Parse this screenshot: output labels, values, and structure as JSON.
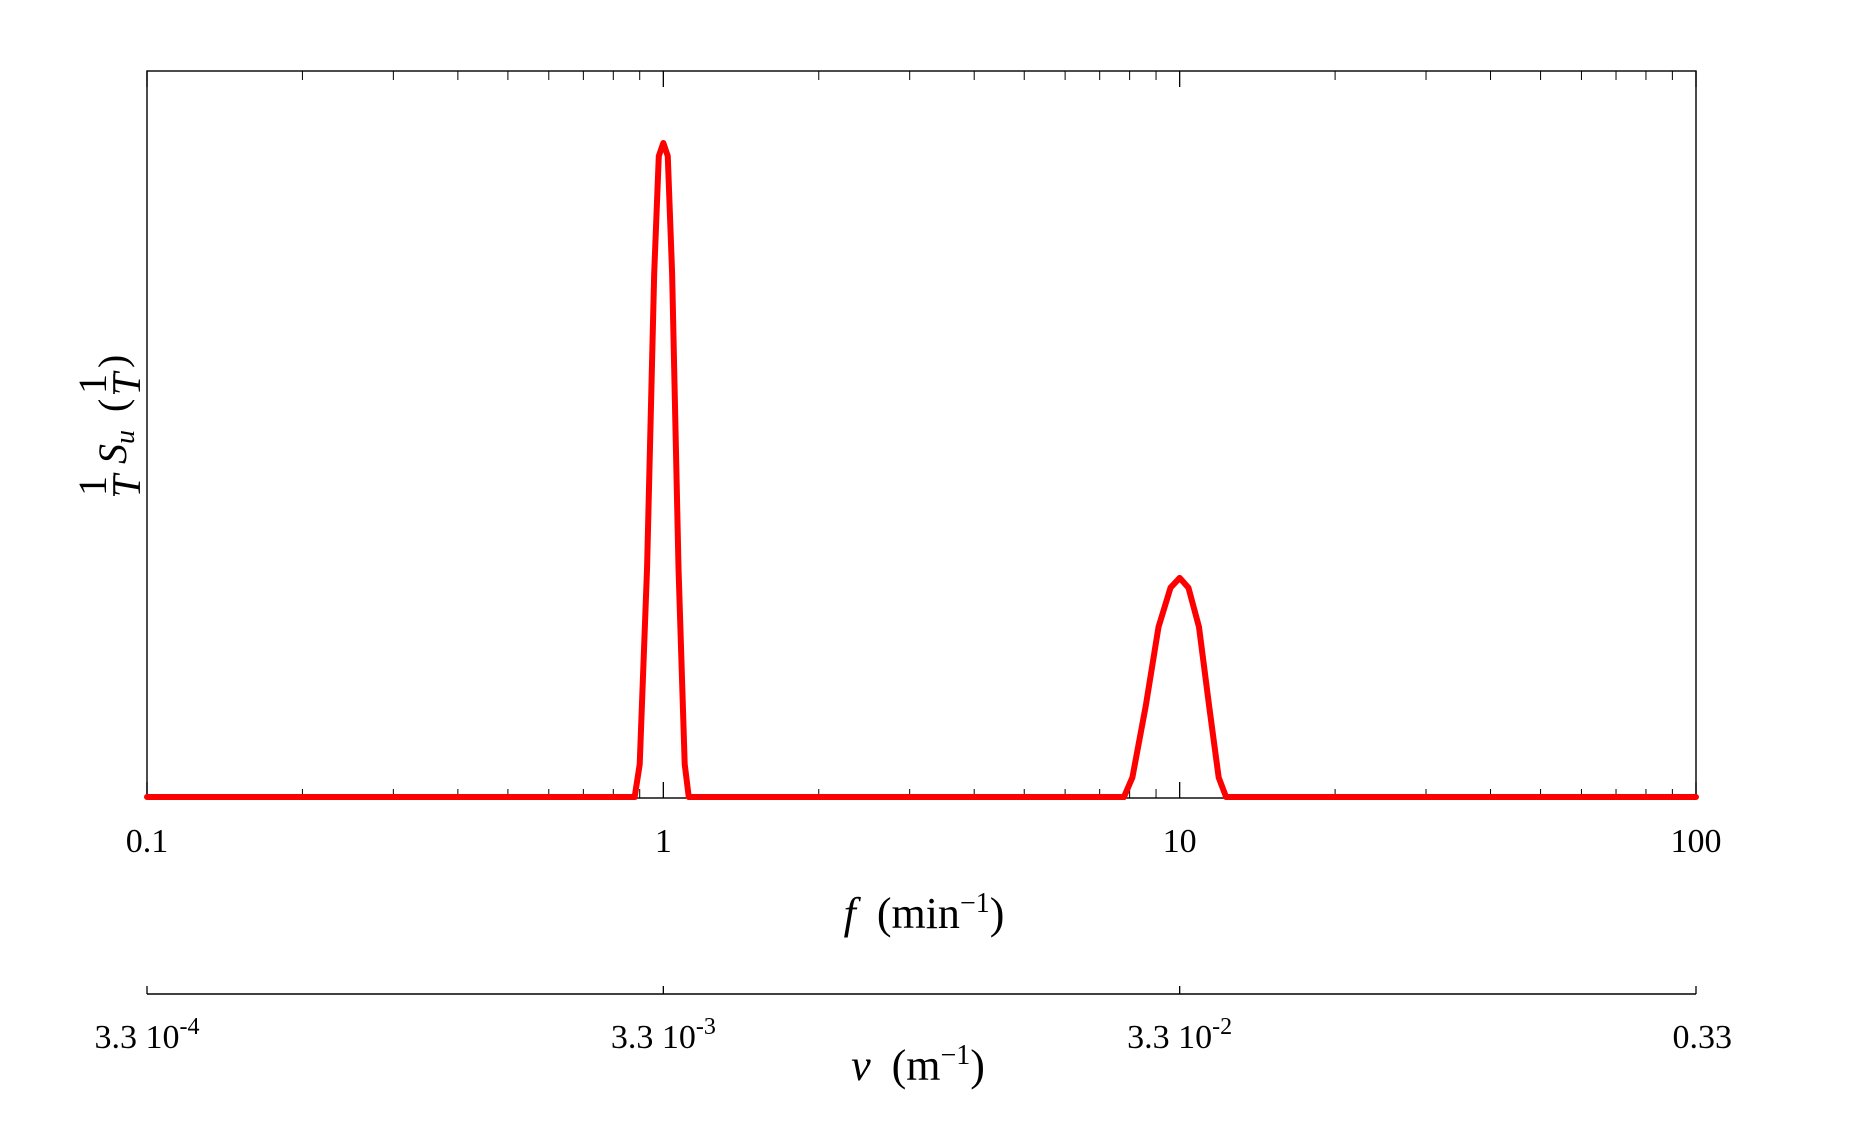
{
  "chart_data": {
    "type": "line",
    "xscale": "log",
    "xlim": [
      0.1,
      100
    ],
    "xticks": [
      {
        "value": 0.1,
        "label": "0.1"
      },
      {
        "value": 1,
        "label": "1"
      },
      {
        "value": 10,
        "label": "10"
      },
      {
        "value": 100,
        "label": "100"
      }
    ],
    "xlabel": {
      "var": "f",
      "unit_base": "min",
      "unit_exp": "−1"
    },
    "secondary_xaxis": {
      "label": {
        "var": "ν",
        "unit_base": "m",
        "unit_exp": "−1"
      },
      "ticks": [
        {
          "value": 0.1,
          "mantissa": "3.3 10",
          "exp": "-4"
        },
        {
          "value": 1,
          "mantissa": "3.3 10",
          "exp": "-3"
        },
        {
          "value": 10,
          "mantissa": "3.3 10",
          "exp": "-2"
        },
        {
          "value": 100,
          "mantissa": "0.33",
          "exp": ""
        }
      ]
    },
    "ylabel": {
      "frac_num": "1",
      "frac_den": "T",
      "symbol": "S",
      "subscript": "u"
    },
    "yticks": [],
    "grid": false,
    "line_color": "#ff0000",
    "series": [
      {
        "x": [
          0.1,
          0.5,
          0.88,
          0.9,
          0.93,
          0.96,
          0.98,
          1.0,
          1.02,
          1.04,
          1.07,
          1.1,
          1.12,
          2,
          5,
          7.8,
          8.1,
          8.6,
          9.1,
          9.6,
          10.0,
          10.4,
          10.9,
          11.4,
          11.9,
          12.3,
          20,
          50,
          100
        ],
        "y": [
          0,
          0,
          0,
          0.05,
          0.35,
          0.8,
          0.98,
          1.0,
          0.98,
          0.8,
          0.35,
          0.05,
          0,
          0,
          0,
          0,
          0.03,
          0.14,
          0.26,
          0.32,
          0.335,
          0.32,
          0.26,
          0.14,
          0.03,
          0,
          0,
          0,
          0
        ]
      }
    ]
  }
}
